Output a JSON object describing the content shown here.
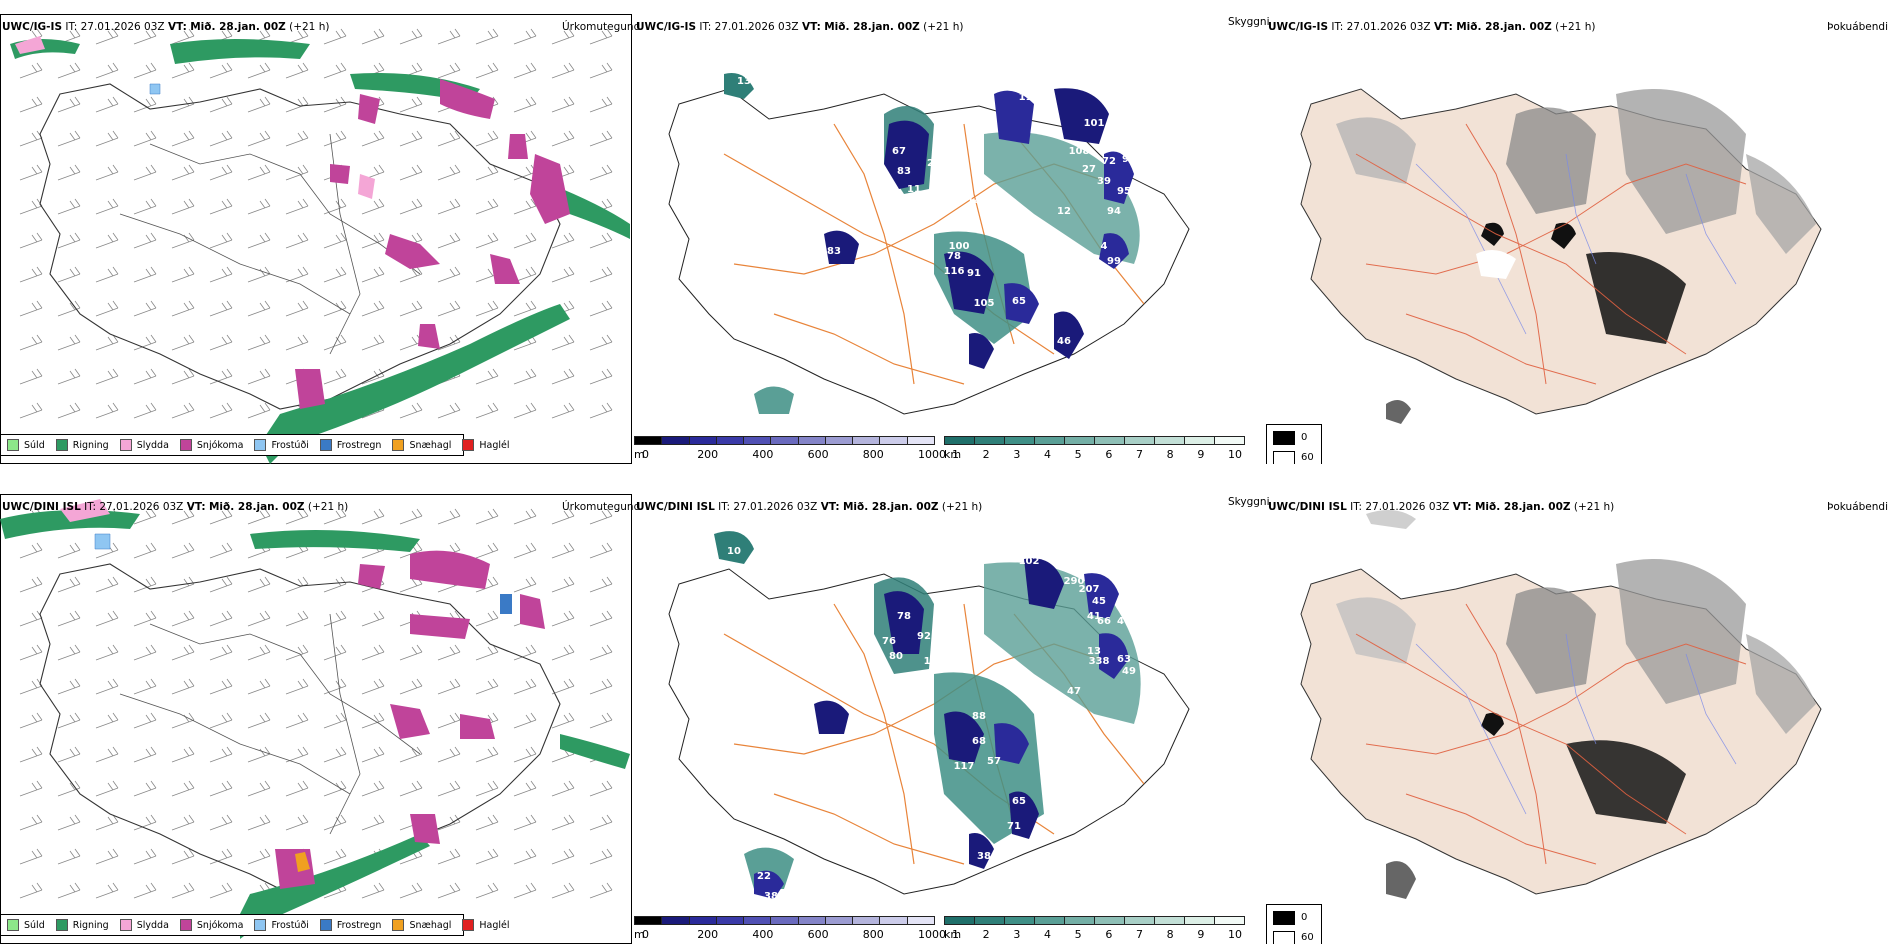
{
  "rows": [
    {
      "model": "UWC/IG-IS",
      "it": "IT: 27.01.2026 03Z",
      "vt_prefix": "VT:",
      "vt": "Mið. 28.jan. 00Z",
      "lead": "(+21 h)"
    },
    {
      "model": "UWC/DINI ISL",
      "it": "IT: 27.01.2026 03Z",
      "vt_prefix": "VT:",
      "vt": "Mið. 28.jan. 00Z",
      "lead": "(+21 h)"
    }
  ],
  "panel_titles": {
    "precip": "Úrkomutegund",
    "cloud": "Skyggni",
    "fog": "Þokuábendi"
  },
  "precip_legend": [
    {
      "label": "Súld",
      "color": "#8de88a"
    },
    {
      "label": "Rigning",
      "color": "#2e9a62"
    },
    {
      "label": "Slydda",
      "color": "#f4a6d6"
    },
    {
      "label": "Snjókoma",
      "color": "#c0449a"
    },
    {
      "label": "Frostúði",
      "color": "#8fc6f2"
    },
    {
      "label": "Frostregn",
      "color": "#3a7ac6"
    },
    {
      "label": "Snæhagl",
      "color": "#f0a020"
    },
    {
      "label": "Haglél",
      "color": "#e02020"
    }
  ],
  "cloudbase_scale": {
    "unit": "m",
    "ticks": [
      "0",
      "200",
      "400",
      "600",
      "800",
      "1000"
    ],
    "colors": [
      "#000000",
      "#1a1a7a",
      "#2a2a9a",
      "#3a3aa8",
      "#5050b4",
      "#6a6abe",
      "#8484c8",
      "#9c9cd2",
      "#b4b4dc",
      "#ccccea",
      "#e4e4f6"
    ]
  },
  "visibility_scale": {
    "unit": "km",
    "ticks": [
      "1",
      "2",
      "3",
      "4",
      "5",
      "6",
      "7",
      "8",
      "9",
      "10"
    ],
    "colors": [
      "#1f6f6a",
      "#2f7f78",
      "#3f8f86",
      "#5a9f96",
      "#74afa6",
      "#8ebfb6",
      "#a8cfc6",
      "#c2dfd6",
      "#dcefe6",
      "#f2faf6"
    ]
  },
  "fog_legend": [
    {
      "label": "0",
      "color": "#000000"
    },
    {
      "label": "60",
      "color": "#ffffff"
    }
  ],
  "cloud_labels_top": [
    "67",
    "83",
    "11",
    "27",
    "17",
    "114",
    "108",
    "101",
    "72",
    "91",
    "95",
    "94",
    "39",
    "27",
    "14",
    "100",
    "116",
    "91",
    "105",
    "65",
    "46",
    "78",
    "83",
    "99",
    "57",
    "12",
    "13",
    "70",
    "4"
  ],
  "cloud_labels_bottom": [
    "76",
    "78",
    "80",
    "92",
    "106",
    "102",
    "290",
    "207",
    "66",
    "46",
    "45",
    "41",
    "13",
    "63",
    "49",
    "338",
    "47",
    "88",
    "68",
    "117",
    "57",
    "65",
    "80",
    "38",
    "71",
    "65",
    "22",
    "38",
    "10"
  ]
}
